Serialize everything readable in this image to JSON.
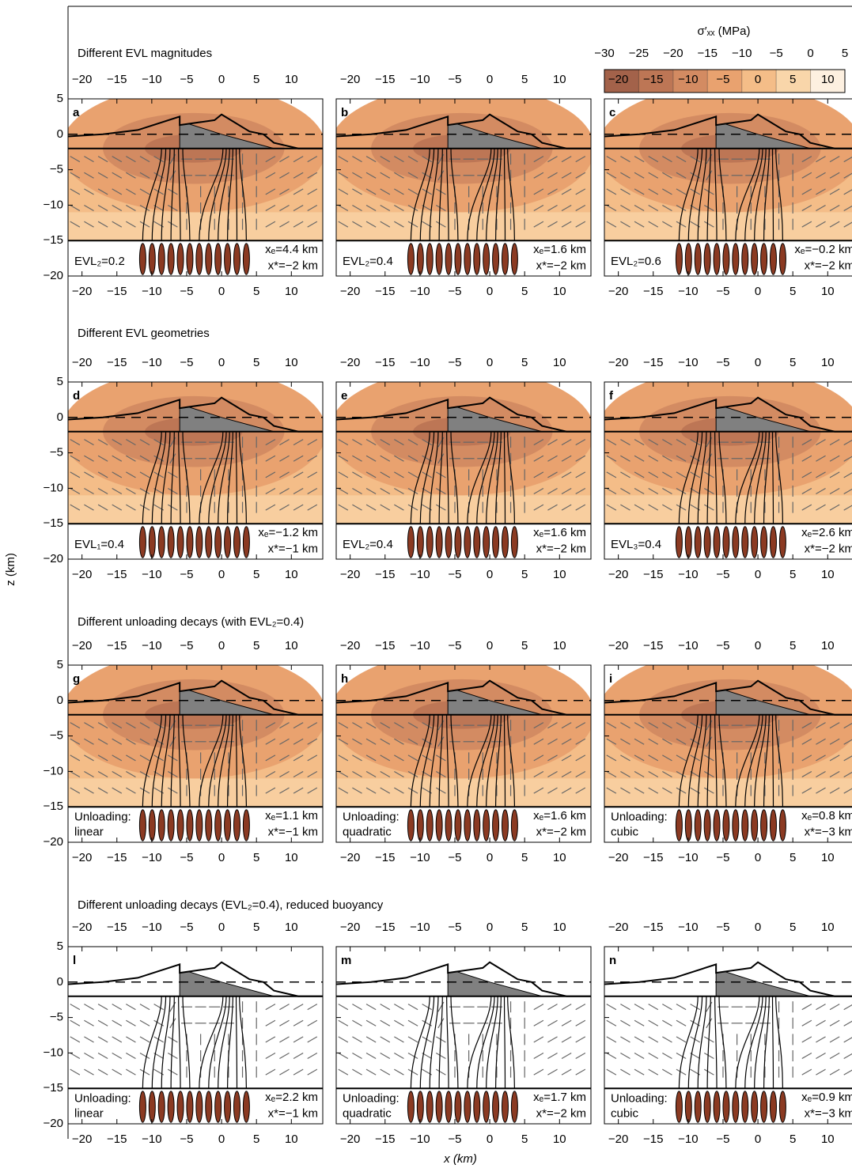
{
  "chart_data": {
    "type": "contour-panels",
    "colorbar": {
      "label": "σ′ₓₓ (MPa)",
      "bounds": [
        {
          "value": -30,
          "label": "−30"
        },
        {
          "value": -25,
          "label": "−25"
        },
        {
          "value": -20,
          "label": "−20"
        },
        {
          "value": -15,
          "label": "−15"
        },
        {
          "value": -10,
          "label": "−10"
        },
        {
          "value": -5,
          "label": "−5"
        },
        0,
        5
      ],
      "colors": [
        "#a3624a",
        "#bd7655",
        "#d38b62",
        "#e9a26f",
        "#f4bd88",
        "#f9d6aa",
        "#fdf0e0"
      ]
    },
    "xlabel": "x (km)",
    "ylabel": "z (km)",
    "xlim": [
      -22,
      14.5
    ],
    "ylim": [
      -20,
      5
    ],
    "xticks": [
      {
        "value": -20,
        "label": "−20"
      },
      {
        "value": -15,
        "label": "−15"
      },
      {
        "value": -10,
        "label": "−10"
      },
      {
        "value": -5,
        "label": "−5"
      },
      0,
      5,
      10
    ],
    "yticks": [
      5,
      0,
      {
        "value": -5,
        "label": "−5"
      },
      {
        "value": -10,
        "label": "−10"
      },
      {
        "value": -15,
        "label": "−15"
      },
      {
        "value": -20,
        "label": "−20"
      }
    ],
    "sections": [
      "Different EVL magnitudes",
      "Different EVL geometries",
      "Different unloading decays (with EVL₂=0.4)",
      "Different unloading decays (EVL₂=0.4), reduced buoyancy"
    ],
    "panels": [
      {
        "label": "a",
        "note": [
          "EVL₂=0.2"
        ],
        "xe": "xₑ=4.4 km",
        "xstar": "x*=−2 km",
        "filled": true
      },
      {
        "label": "b",
        "note": [
          "EVL₂=0.4"
        ],
        "xe": "xₑ=1.6 km",
        "xstar": "x*=−2 km",
        "filled": true
      },
      {
        "label": "c",
        "note": [
          "EVL₂=0.6"
        ],
        "xe": "xₑ=−0.2 km",
        "xstar": "x*=−2 km",
        "filled": true
      },
      {
        "label": "d",
        "note": [
          "EVL₁=0.4"
        ],
        "xe": "xₑ=−1.2 km",
        "xstar": "x*=−1 km",
        "filled": true
      },
      {
        "label": "e",
        "note": [
          "EVL₂=0.4"
        ],
        "xe": "xₑ=1.6 km",
        "xstar": "x*=−2 km",
        "filled": true
      },
      {
        "label": "f",
        "note": [
          "EVL₃=0.4"
        ],
        "xe": "xₑ=2.6 km",
        "xstar": "x*=−2 km",
        "filled": true
      },
      {
        "label": "g",
        "note": [
          "Unloading:",
          "linear"
        ],
        "xe": "xₑ=1.1 km",
        "xstar": "x*=−1 km",
        "filled": true
      },
      {
        "label": "h",
        "note": [
          "Unloading:",
          "quadratic"
        ],
        "xe": "xₑ=1.6 km",
        "xstar": "x*=−2 km",
        "filled": true
      },
      {
        "label": "i",
        "note": [
          "Unloading:",
          "cubic"
        ],
        "xe": "xₑ=0.8 km",
        "xstar": "x*=−3 km",
        "filled": true
      },
      {
        "label": "l",
        "note": [
          "Unloading:",
          "linear"
        ],
        "xe": "xₑ=2.2 km",
        "xstar": "x*=−1 km",
        "filled": false
      },
      {
        "label": "m",
        "note": [
          "Unloading:",
          "quadratic"
        ],
        "xe": "xₑ=1.7 km",
        "xstar": "x*=−2 km",
        "filled": false
      },
      {
        "label": "n",
        "note": [
          "Unloading:",
          "cubic"
        ],
        "xe": "xₑ=0.9 km",
        "xstar": "x*=−3 km",
        "filled": false
      }
    ]
  }
}
